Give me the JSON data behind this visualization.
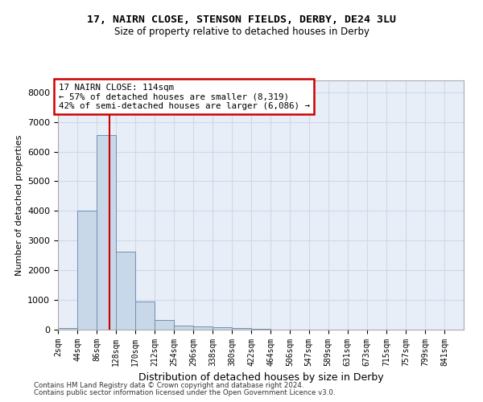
{
  "title1": "17, NAIRN CLOSE, STENSON FIELDS, DERBY, DE24 3LU",
  "title2": "Size of property relative to detached houses in Derby",
  "xlabel": "Distribution of detached houses by size in Derby",
  "ylabel": "Number of detached properties",
  "bar_color": "#c8d8e8",
  "bar_edge_color": "#7090b0",
  "grid_color": "#d0d8e8",
  "background_color": "#e8eef8",
  "annotation_box_color": "#cc0000",
  "vline_color": "#cc0000",
  "property_size": 114,
  "annotation_line1": "17 NAIRN CLOSE: 114sqm",
  "annotation_line2": "← 57% of detached houses are smaller (8,319)",
  "annotation_line3": "42% of semi-detached houses are larger (6,086) →",
  "footer1": "Contains HM Land Registry data © Crown copyright and database right 2024.",
  "footer2": "Contains public sector information licensed under the Open Government Licence v3.0.",
  "bins": [
    2,
    44,
    86,
    128,
    170,
    212,
    254,
    296,
    338,
    380,
    422,
    464,
    506,
    547,
    589,
    631,
    673,
    715,
    757,
    799,
    841
  ],
  "counts": [
    60,
    4000,
    6550,
    2625,
    950,
    325,
    140,
    110,
    80,
    60,
    40,
    0,
    0,
    0,
    0,
    0,
    0,
    0,
    0,
    0
  ],
  "ylim": [
    0,
    8400
  ],
  "yticks": [
    0,
    1000,
    2000,
    3000,
    4000,
    5000,
    6000,
    7000,
    8000
  ]
}
